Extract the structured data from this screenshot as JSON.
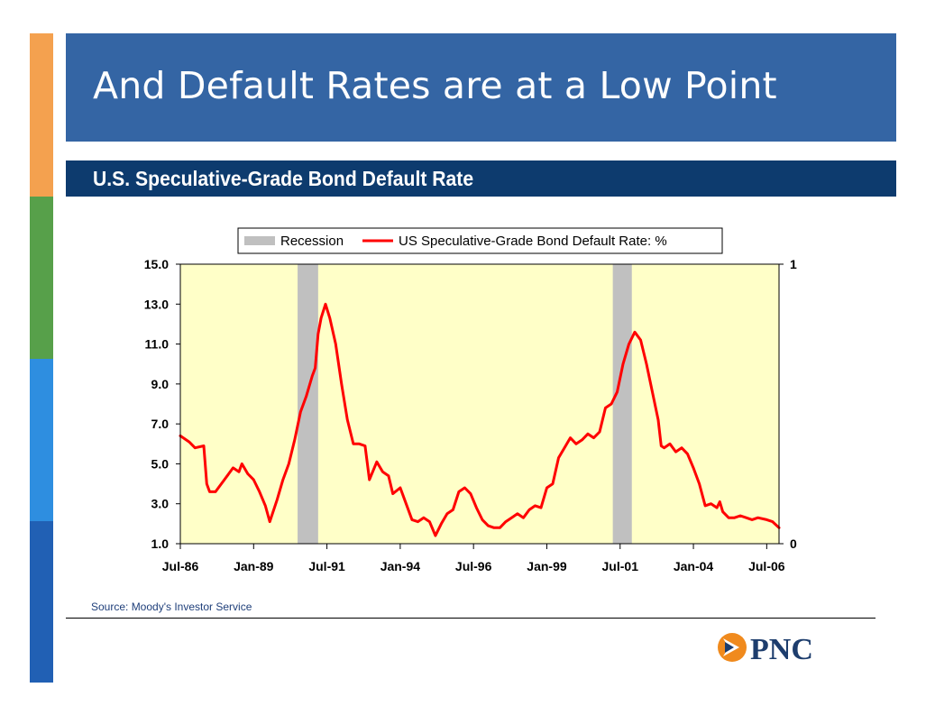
{
  "slide": {
    "title": "And Default Rates are at a Low Point",
    "subtitle": "U.S. Speculative-Grade Bond Default Rate",
    "source": "Source: Moody's Investor Service",
    "logo_text": "PNC",
    "colors": {
      "title_banner": "#3465a4",
      "subtitle_banner": "#0d3b6e",
      "side_stripes": [
        "#f4a14f",
        "#57a04a",
        "#2e8ee0",
        "#2160b4"
      ],
      "logo_orange": "#f08a1d",
      "logo_navy": "#1d3d6d"
    }
  },
  "chart_data": {
    "type": "line",
    "title": "",
    "xlabel": "",
    "ylabel": "",
    "ylim": [
      1.0,
      15.0
    ],
    "y_ticks": [
      "15.0",
      "13.0",
      "11.0",
      "9.0",
      "7.0",
      "5.0",
      "3.0",
      "1.0"
    ],
    "y2lim": [
      0,
      1
    ],
    "y2_ticks": [
      "1",
      "0"
    ],
    "x_range": [
      1986.5,
      2006.92
    ],
    "x_ticks": [
      {
        "label": "Jul-86",
        "x": 1986.5
      },
      {
        "label": "Jan-89",
        "x": 1989.0
      },
      {
        "label": "Jul-91",
        "x": 1991.5
      },
      {
        "label": "Jan-94",
        "x": 1994.0
      },
      {
        "label": "Jul-96",
        "x": 1996.5
      },
      {
        "label": "Jan-99",
        "x": 1999.0
      },
      {
        "label": "Jul-01",
        "x": 2001.5
      },
      {
        "label": "Jan-04",
        "x": 2004.0
      },
      {
        "label": "Jul-06",
        "x": 2006.5
      }
    ],
    "grid": false,
    "legend_position": "top",
    "plot_background": "#ffffc8",
    "recessions": [
      {
        "start": 1990.5,
        "end": 1991.2
      },
      {
        "start": 2001.25,
        "end": 2001.9
      }
    ],
    "series": [
      {
        "name": "US Speculative-Grade Bond Default Rate: %",
        "color": "#ff0000",
        "points": [
          [
            1986.5,
            6.4
          ],
          [
            1986.8,
            6.1
          ],
          [
            1987.0,
            5.8
          ],
          [
            1987.3,
            5.9
          ],
          [
            1987.4,
            4.0
          ],
          [
            1987.5,
            3.6
          ],
          [
            1987.7,
            3.6
          ],
          [
            1988.0,
            4.2
          ],
          [
            1988.3,
            4.8
          ],
          [
            1988.5,
            4.6
          ],
          [
            1988.6,
            5.0
          ],
          [
            1988.8,
            4.5
          ],
          [
            1989.0,
            4.2
          ],
          [
            1989.2,
            3.6
          ],
          [
            1989.4,
            2.9
          ],
          [
            1989.55,
            2.1
          ],
          [
            1989.8,
            3.2
          ],
          [
            1990.0,
            4.2
          ],
          [
            1990.2,
            5.0
          ],
          [
            1990.4,
            6.2
          ],
          [
            1990.6,
            7.6
          ],
          [
            1990.8,
            8.4
          ],
          [
            1991.0,
            9.4
          ],
          [
            1991.1,
            9.8
          ],
          [
            1991.2,
            11.5
          ],
          [
            1991.3,
            12.3
          ],
          [
            1991.45,
            13.0
          ],
          [
            1991.6,
            12.3
          ],
          [
            1991.8,
            11.0
          ],
          [
            1992.0,
            9.0
          ],
          [
            1992.2,
            7.2
          ],
          [
            1992.4,
            6.0
          ],
          [
            1992.6,
            6.0
          ],
          [
            1992.8,
            5.9
          ],
          [
            1992.95,
            4.2
          ],
          [
            1993.2,
            5.1
          ],
          [
            1993.4,
            4.6
          ],
          [
            1993.6,
            4.4
          ],
          [
            1993.75,
            3.5
          ],
          [
            1994.0,
            3.8
          ],
          [
            1994.2,
            3.0
          ],
          [
            1994.4,
            2.2
          ],
          [
            1994.6,
            2.1
          ],
          [
            1994.8,
            2.3
          ],
          [
            1995.0,
            2.1
          ],
          [
            1995.2,
            1.4
          ],
          [
            1995.4,
            2.0
          ],
          [
            1995.6,
            2.5
          ],
          [
            1995.8,
            2.7
          ],
          [
            1996.0,
            3.6
          ],
          [
            1996.2,
            3.8
          ],
          [
            1996.4,
            3.5
          ],
          [
            1996.6,
            2.8
          ],
          [
            1996.8,
            2.2
          ],
          [
            1997.0,
            1.9
          ],
          [
            1997.2,
            1.8
          ],
          [
            1997.4,
            1.8
          ],
          [
            1997.6,
            2.1
          ],
          [
            1997.8,
            2.3
          ],
          [
            1998.0,
            2.5
          ],
          [
            1998.2,
            2.3
          ],
          [
            1998.4,
            2.7
          ],
          [
            1998.6,
            2.9
          ],
          [
            1998.8,
            2.8
          ],
          [
            1999.0,
            3.8
          ],
          [
            1999.2,
            4.0
          ],
          [
            1999.4,
            5.3
          ],
          [
            1999.6,
            5.8
          ],
          [
            1999.8,
            6.3
          ],
          [
            2000.0,
            6.0
          ],
          [
            2000.2,
            6.2
          ],
          [
            2000.4,
            6.5
          ],
          [
            2000.6,
            6.3
          ],
          [
            2000.8,
            6.6
          ],
          [
            2001.0,
            7.8
          ],
          [
            2001.2,
            8.0
          ],
          [
            2001.4,
            8.6
          ],
          [
            2001.6,
            10.0
          ],
          [
            2001.8,
            11.0
          ],
          [
            2002.0,
            11.6
          ],
          [
            2002.2,
            11.2
          ],
          [
            2002.4,
            10.0
          ],
          [
            2002.6,
            8.6
          ],
          [
            2002.8,
            7.2
          ],
          [
            2002.9,
            5.9
          ],
          [
            2003.0,
            5.8
          ],
          [
            2003.2,
            6.0
          ],
          [
            2003.4,
            5.6
          ],
          [
            2003.6,
            5.8
          ],
          [
            2003.8,
            5.5
          ],
          [
            2004.0,
            4.8
          ],
          [
            2004.2,
            4.0
          ],
          [
            2004.4,
            2.9
          ],
          [
            2004.6,
            3.0
          ],
          [
            2004.8,
            2.8
          ],
          [
            2004.9,
            3.1
          ],
          [
            2005.0,
            2.6
          ],
          [
            2005.2,
            2.3
          ],
          [
            2005.4,
            2.3
          ],
          [
            2005.6,
            2.4
          ],
          [
            2005.8,
            2.3
          ],
          [
            2006.0,
            2.2
          ],
          [
            2006.2,
            2.3
          ],
          [
            2006.5,
            2.2
          ],
          [
            2006.7,
            2.1
          ],
          [
            2006.92,
            1.8
          ]
        ]
      }
    ],
    "legend": [
      {
        "label": "Recession",
        "type": "swatch",
        "color": "#c0c0c0"
      },
      {
        "label": "US Speculative-Grade Bond Default Rate: %",
        "type": "line",
        "color": "#ff0000"
      }
    ]
  }
}
